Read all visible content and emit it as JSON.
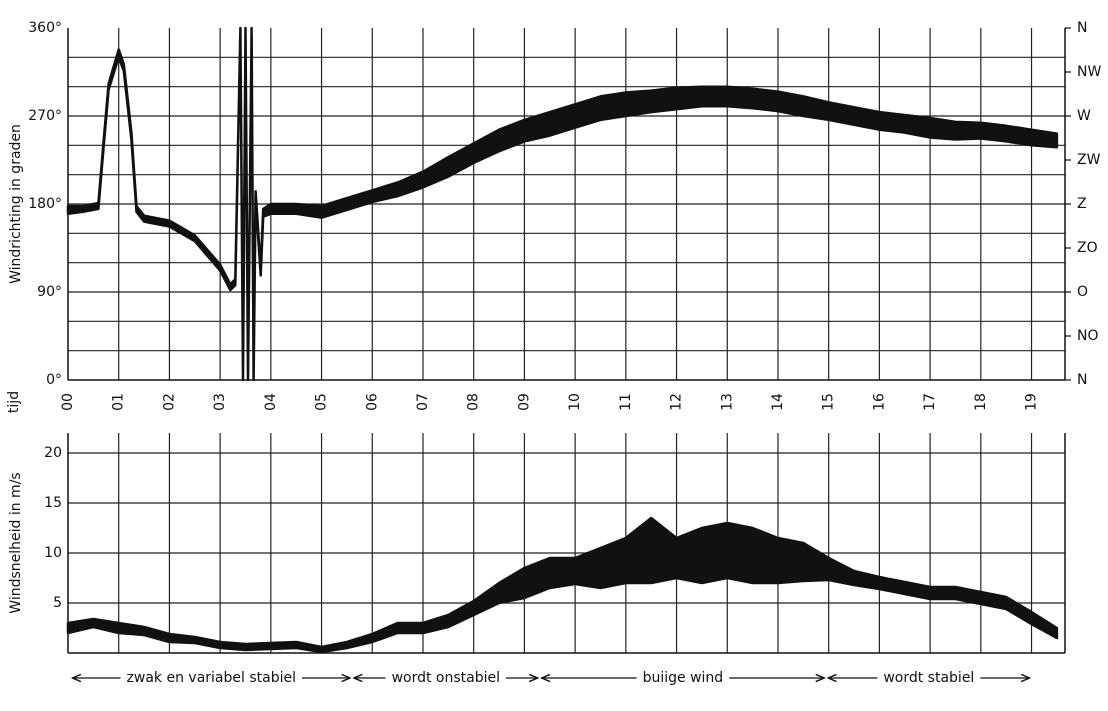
{
  "chart_data": [
    {
      "type": "band",
      "y_label": "Windrichting in graden",
      "x_label": "tijd",
      "xlim": [
        0,
        19.66
      ],
      "ylim": [
        0,
        360
      ],
      "y2lim": [
        0,
        360
      ],
      "xticks": [
        {
          "value": 0,
          "label": "00"
        },
        {
          "value": 1,
          "label": "01"
        },
        {
          "value": 2,
          "label": "02"
        },
        {
          "value": 3,
          "label": "03"
        },
        {
          "value": 4,
          "label": "04"
        },
        {
          "value": 5,
          "label": "05"
        },
        {
          "value": 6,
          "label": "06"
        },
        {
          "value": 7,
          "label": "07"
        },
        {
          "value": 8,
          "label": "08"
        },
        {
          "value": 9,
          "label": "09"
        },
        10,
        11,
        12,
        13,
        14,
        15,
        16,
        17,
        18,
        19
      ],
      "yticks": [
        {
          "value": 0,
          "label": "0°"
        },
        {
          "value": 90,
          "label": "90°"
        },
        {
          "value": 180,
          "label": "180°"
        },
        {
          "value": 270,
          "label": "270°"
        },
        {
          "value": 360,
          "label": "360°"
        }
      ],
      "y2ticks": [
        {
          "value": 0,
          "label": "N"
        },
        {
          "value": 45,
          "label": "NO"
        },
        {
          "value": 90,
          "label": "O"
        },
        {
          "value": 135,
          "label": "ZO"
        },
        {
          "value": 180,
          "label": "Z"
        },
        {
          "value": 225,
          "label": "ZW"
        },
        {
          "value": 270,
          "label": "W"
        },
        {
          "value": 315,
          "label": "NW"
        },
        {
          "value": 360,
          "label": "N"
        }
      ],
      "ygrid": [
        30,
        60,
        90,
        120,
        150,
        180,
        210,
        240,
        270,
        300,
        330
      ],
      "grid": true,
      "color": "#111111",
      "x": [
        0,
        0.3,
        0.6,
        0.7,
        0.8,
        1.0,
        1.1,
        1.25,
        1.35,
        1.5,
        2.0,
        2.5,
        3.0,
        3.2,
        3.3,
        3.4,
        3.45,
        3.5,
        3.55,
        3.62,
        3.66,
        3.7,
        3.8,
        3.85,
        4.0,
        4.5,
        5.0,
        5.5,
        6.0,
        6.5,
        7.0,
        7.5,
        8.0,
        8.5,
        9.0,
        9.5,
        10.0,
        10.5,
        11.0,
        11.5,
        12.0,
        12.5,
        13.0,
        13.5,
        14.0,
        14.5,
        15.0,
        15.5,
        16.0,
        16.5,
        17.0,
        17.5,
        18.0,
        18.5,
        19.0,
        19.5
      ],
      "upper": [
        178,
        178,
        181,
        243,
        303,
        338,
        323,
        253,
        178,
        168,
        163,
        148,
        118,
        98,
        103,
        360,
        2,
        360,
        2,
        360,
        2,
        193,
        113,
        175,
        180,
        180,
        178,
        186,
        194,
        202,
        213,
        228,
        242,
        256,
        266,
        274,
        282,
        290,
        294,
        296,
        299,
        300,
        300,
        298,
        295,
        290,
        284,
        279,
        274,
        271,
        268,
        264,
        263,
        260,
        256,
        252
      ],
      "lower": [
        170,
        172,
        175,
        237,
        297,
        330,
        316,
        246,
        172,
        162,
        157,
        142,
        112,
        92,
        97,
        358,
        0,
        358,
        0,
        358,
        0,
        187,
        107,
        167,
        170,
        170,
        166,
        174,
        182,
        188,
        197,
        208,
        222,
        234,
        244,
        250,
        258,
        266,
        270,
        274,
        277,
        280,
        280,
        278,
        275,
        270,
        266,
        261,
        256,
        253,
        248,
        246,
        247,
        244,
        240,
        238
      ]
    },
    {
      "type": "band",
      "y_label": "Windsnelheid in m/s",
      "xlim": [
        0,
        19.66
      ],
      "ylim": [
        0,
        22
      ],
      "yticks": [
        5,
        10,
        15,
        20
      ],
      "grid": true,
      "color": "#111111",
      "x": [
        0,
        0.5,
        1.0,
        1.5,
        2.0,
        2.5,
        3.0,
        3.5,
        4.0,
        4.5,
        5.0,
        5.5,
        6.0,
        6.5,
        7.0,
        7.5,
        8.0,
        8.5,
        9.0,
        9.5,
        10.0,
        10.5,
        11.0,
        11.5,
        12.0,
        12.5,
        13.0,
        13.5,
        14.0,
        14.5,
        15.0,
        15.5,
        16.0,
        16.5,
        17.0,
        17.5,
        18.0,
        18.5,
        19.0,
        19.5
      ],
      "upper": [
        3,
        3.4,
        3,
        2.6,
        1.9,
        1.6,
        1.1,
        0.9,
        1,
        1.1,
        0.6,
        1.1,
        1.9,
        3,
        3,
        3.8,
        5.2,
        7,
        8.5,
        9.5,
        9.5,
        10.5,
        11.5,
        13.5,
        11.5,
        12.5,
        13,
        12.5,
        11.5,
        11,
        9.5,
        8.2,
        7.6,
        7.1,
        6.6,
        6.6,
        6.1,
        5.6,
        4.1,
        2.5
      ],
      "lower": [
        2,
        2.6,
        2,
        1.8,
        1.1,
        1,
        0.5,
        0.3,
        0.4,
        0.5,
        0.1,
        0.5,
        1.1,
        2,
        2,
        2.6,
        3.8,
        5,
        5.5,
        6.5,
        6.9,
        6.5,
        7,
        7,
        7.5,
        7,
        7.5,
        7,
        7,
        7.2,
        7.3,
        6.8,
        6.4,
        5.9,
        5.4,
        5.4,
        4.9,
        4.4,
        2.9,
        1.5
      ],
      "annotations": [
        {
          "text": "zwak en variabel stabiel",
          "x0": 0.05,
          "x1": 5.6
        },
        {
          "text": "wordt onstabiel",
          "x0": 5.6,
          "x1": 9.3
        },
        {
          "text": "buiige wind",
          "x0": 9.3,
          "x1": 14.95
        },
        {
          "text": "wordt stabiel",
          "x0": 14.95,
          "x1": 19.0
        }
      ]
    }
  ]
}
